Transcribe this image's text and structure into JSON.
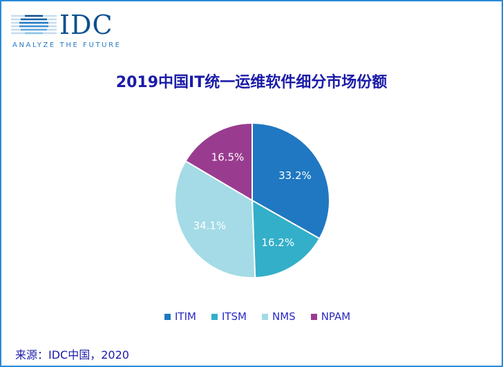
{
  "logo": {
    "name": "IDC",
    "tagline": "ANALYZE THE FUTURE"
  },
  "chart_data": {
    "type": "pie",
    "title": "2019中国IT统一运维软件细分市场份额",
    "categories": [
      "ITIM",
      "ITSM",
      "NMS",
      "NPAM"
    ],
    "values": [
      33.2,
      16.2,
      34.1,
      16.5
    ],
    "labels": [
      "33.2%",
      "16.2%",
      "34.1%",
      "16.5%"
    ],
    "colors": [
      "#1f78c1",
      "#33afc9",
      "#a4dbe6",
      "#993c90"
    ],
    "start": "12 o'clock, clockwise",
    "legend_position": "bottom"
  },
  "source": "来源：IDC中国，2020"
}
